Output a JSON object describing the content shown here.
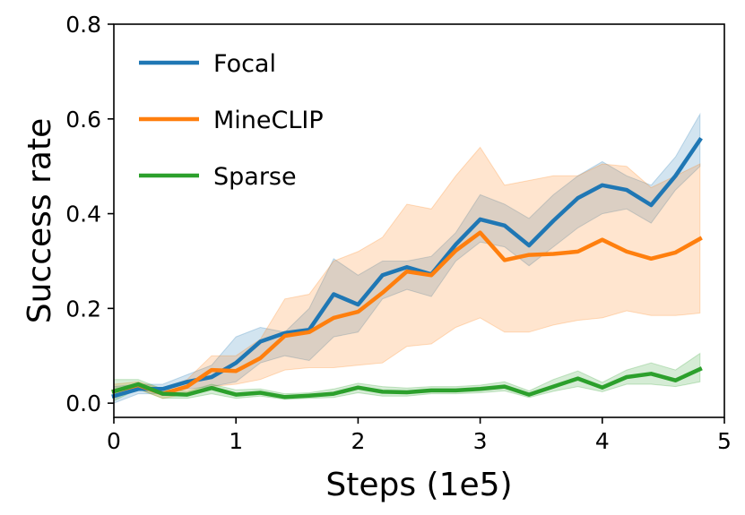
{
  "chart_data": {
    "type": "line",
    "xlabel": "Steps (1e5)",
    "ylabel": "Success rate",
    "xlim": [
      0,
      5
    ],
    "ylim": [
      -0.03,
      0.8
    ],
    "xticks": [
      "0",
      "1",
      "2",
      "3",
      "4",
      "5"
    ],
    "yticks": [
      "0.0",
      "0.2",
      "0.4",
      "0.6",
      "0.8"
    ],
    "grid": false,
    "legend_position": "top-left",
    "x": [
      0.0,
      0.2,
      0.4,
      0.6,
      0.8,
      1.0,
      1.2,
      1.4,
      1.6,
      1.8,
      2.0,
      2.2,
      2.4,
      2.6,
      2.8,
      3.0,
      3.2,
      3.4,
      3.6,
      3.8,
      4.0,
      4.2,
      4.4,
      4.6,
      4.8
    ],
    "series": [
      {
        "name": "Focal",
        "color": "#1f77b4",
        "values": [
          0.015,
          0.03,
          0.03,
          0.045,
          0.055,
          0.085,
          0.13,
          0.148,
          0.155,
          0.23,
          0.208,
          0.27,
          0.287,
          0.272,
          0.335,
          0.388,
          0.375,
          0.333,
          0.385,
          0.433,
          0.46,
          0.45,
          0.418,
          0.48,
          0.556
        ],
        "lower": [
          0.0,
          0.02,
          0.02,
          0.03,
          0.035,
          0.045,
          0.085,
          0.1,
          0.09,
          0.14,
          0.15,
          0.22,
          0.24,
          0.225,
          0.3,
          0.34,
          0.33,
          0.29,
          0.33,
          0.37,
          0.4,
          0.41,
          0.38,
          0.45,
          0.5
        ],
        "upper": [
          0.035,
          0.04,
          0.04,
          0.06,
          0.08,
          0.14,
          0.16,
          0.15,
          0.2,
          0.305,
          0.27,
          0.3,
          0.3,
          0.31,
          0.36,
          0.44,
          0.42,
          0.39,
          0.44,
          0.48,
          0.51,
          0.48,
          0.46,
          0.52,
          0.61
        ]
      },
      {
        "name": "MineCLIP",
        "color": "#ff7f0e",
        "values": [
          0.025,
          0.038,
          0.02,
          0.035,
          0.07,
          0.068,
          0.095,
          0.142,
          0.15,
          0.18,
          0.193,
          0.233,
          0.278,
          0.27,
          0.322,
          0.36,
          0.302,
          0.313,
          0.315,
          0.32,
          0.345,
          0.32,
          0.305,
          0.318,
          0.347
        ],
        "lower": [
          0.01,
          0.03,
          0.01,
          0.02,
          0.035,
          0.04,
          0.05,
          0.07,
          0.075,
          0.075,
          0.08,
          0.085,
          0.12,
          0.125,
          0.16,
          0.18,
          0.15,
          0.15,
          0.165,
          0.175,
          0.18,
          0.195,
          0.185,
          0.185,
          0.19
        ],
        "upper": [
          0.04,
          0.045,
          0.03,
          0.05,
          0.1,
          0.1,
          0.135,
          0.22,
          0.23,
          0.3,
          0.32,
          0.35,
          0.42,
          0.41,
          0.48,
          0.54,
          0.46,
          0.47,
          0.48,
          0.48,
          0.505,
          0.5,
          0.455,
          0.48,
          0.505
        ]
      },
      {
        "name": "Sparse",
        "color": "#2ca02c",
        "values": [
          0.025,
          0.04,
          0.02,
          0.018,
          0.032,
          0.018,
          0.022,
          0.013,
          0.016,
          0.02,
          0.033,
          0.024,
          0.023,
          0.027,
          0.027,
          0.03,
          0.035,
          0.018,
          0.035,
          0.052,
          0.033,
          0.055,
          0.062,
          0.048,
          0.072
        ],
        "lower": [
          0.005,
          0.03,
          0.01,
          0.01,
          0.02,
          0.01,
          0.015,
          0.008,
          0.01,
          0.012,
          0.022,
          0.015,
          0.015,
          0.02,
          0.02,
          0.022,
          0.026,
          0.012,
          0.025,
          0.035,
          0.024,
          0.04,
          0.04,
          0.035,
          0.045
        ],
        "upper": [
          0.05,
          0.05,
          0.03,
          0.025,
          0.04,
          0.028,
          0.03,
          0.02,
          0.022,
          0.03,
          0.042,
          0.035,
          0.032,
          0.035,
          0.035,
          0.038,
          0.045,
          0.026,
          0.05,
          0.068,
          0.044,
          0.07,
          0.085,
          0.07,
          0.105
        ]
      }
    ]
  }
}
